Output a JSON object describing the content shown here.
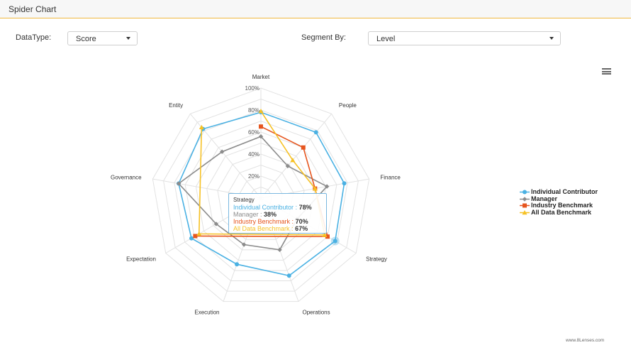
{
  "header": {
    "title": "Spider Chart"
  },
  "controls": {
    "datatype_label": "DataType:",
    "datatype_value": "Score",
    "segment_label": "Segment By:",
    "segment_value": "Level"
  },
  "icons": {
    "menu": "hamburger-icon",
    "dropdown": "chevron-down-icon"
  },
  "chart_data": {
    "type": "radar",
    "categories": [
      "Market",
      "People",
      "Finance",
      "Strategy",
      "Operations",
      "Execution",
      "Expectation",
      "Governance",
      "Entity"
    ],
    "rlim": [
      0,
      100
    ],
    "tick_labels": [
      "20%",
      "40%",
      "60%",
      "80%",
      "100%"
    ],
    "tick_values": [
      20,
      40,
      60,
      80,
      100
    ],
    "series": [
      {
        "name": "Individual Contributor",
        "color": "#4ab1e3",
        "marker": "circle",
        "values": [
          78,
          78,
          77,
          78,
          75,
          64,
          73,
          76,
          82
        ]
      },
      {
        "name": "Manager",
        "color": "#8c8c8c",
        "marker": "diamond",
        "values": [
          56,
          38,
          61,
          38,
          50,
          45,
          47,
          76,
          55
        ]
      },
      {
        "name": "Industry Benchmark",
        "color": "#e6551e",
        "marker": "square",
        "values": [
          65,
          60,
          50,
          70,
          null,
          null,
          69,
          null,
          null
        ]
      },
      {
        "name": "All Data Benchmark",
        "color": "#f6c124",
        "marker": "triangle",
        "values": [
          79,
          45,
          50,
          67,
          null,
          null,
          65,
          null,
          84
        ]
      }
    ],
    "legend_position": "right"
  },
  "tooltip": {
    "category": "Strategy",
    "rows": [
      {
        "series": "Individual Contributor",
        "sep": " : ",
        "value": "78%",
        "color": "#4ab1e3"
      },
      {
        "series": "Manager",
        "sep": " : ",
        "value": "38%",
        "color": "#8c8c8c"
      },
      {
        "series": "Industry Benchmark",
        "sep": " : ",
        "value": "70%",
        "color": "#e6551e"
      },
      {
        "series": "All Data Benchmark",
        "sep": " : ",
        "value": "67%",
        "color": "#f6c124"
      }
    ]
  },
  "credit": "www.8Lenses.com"
}
